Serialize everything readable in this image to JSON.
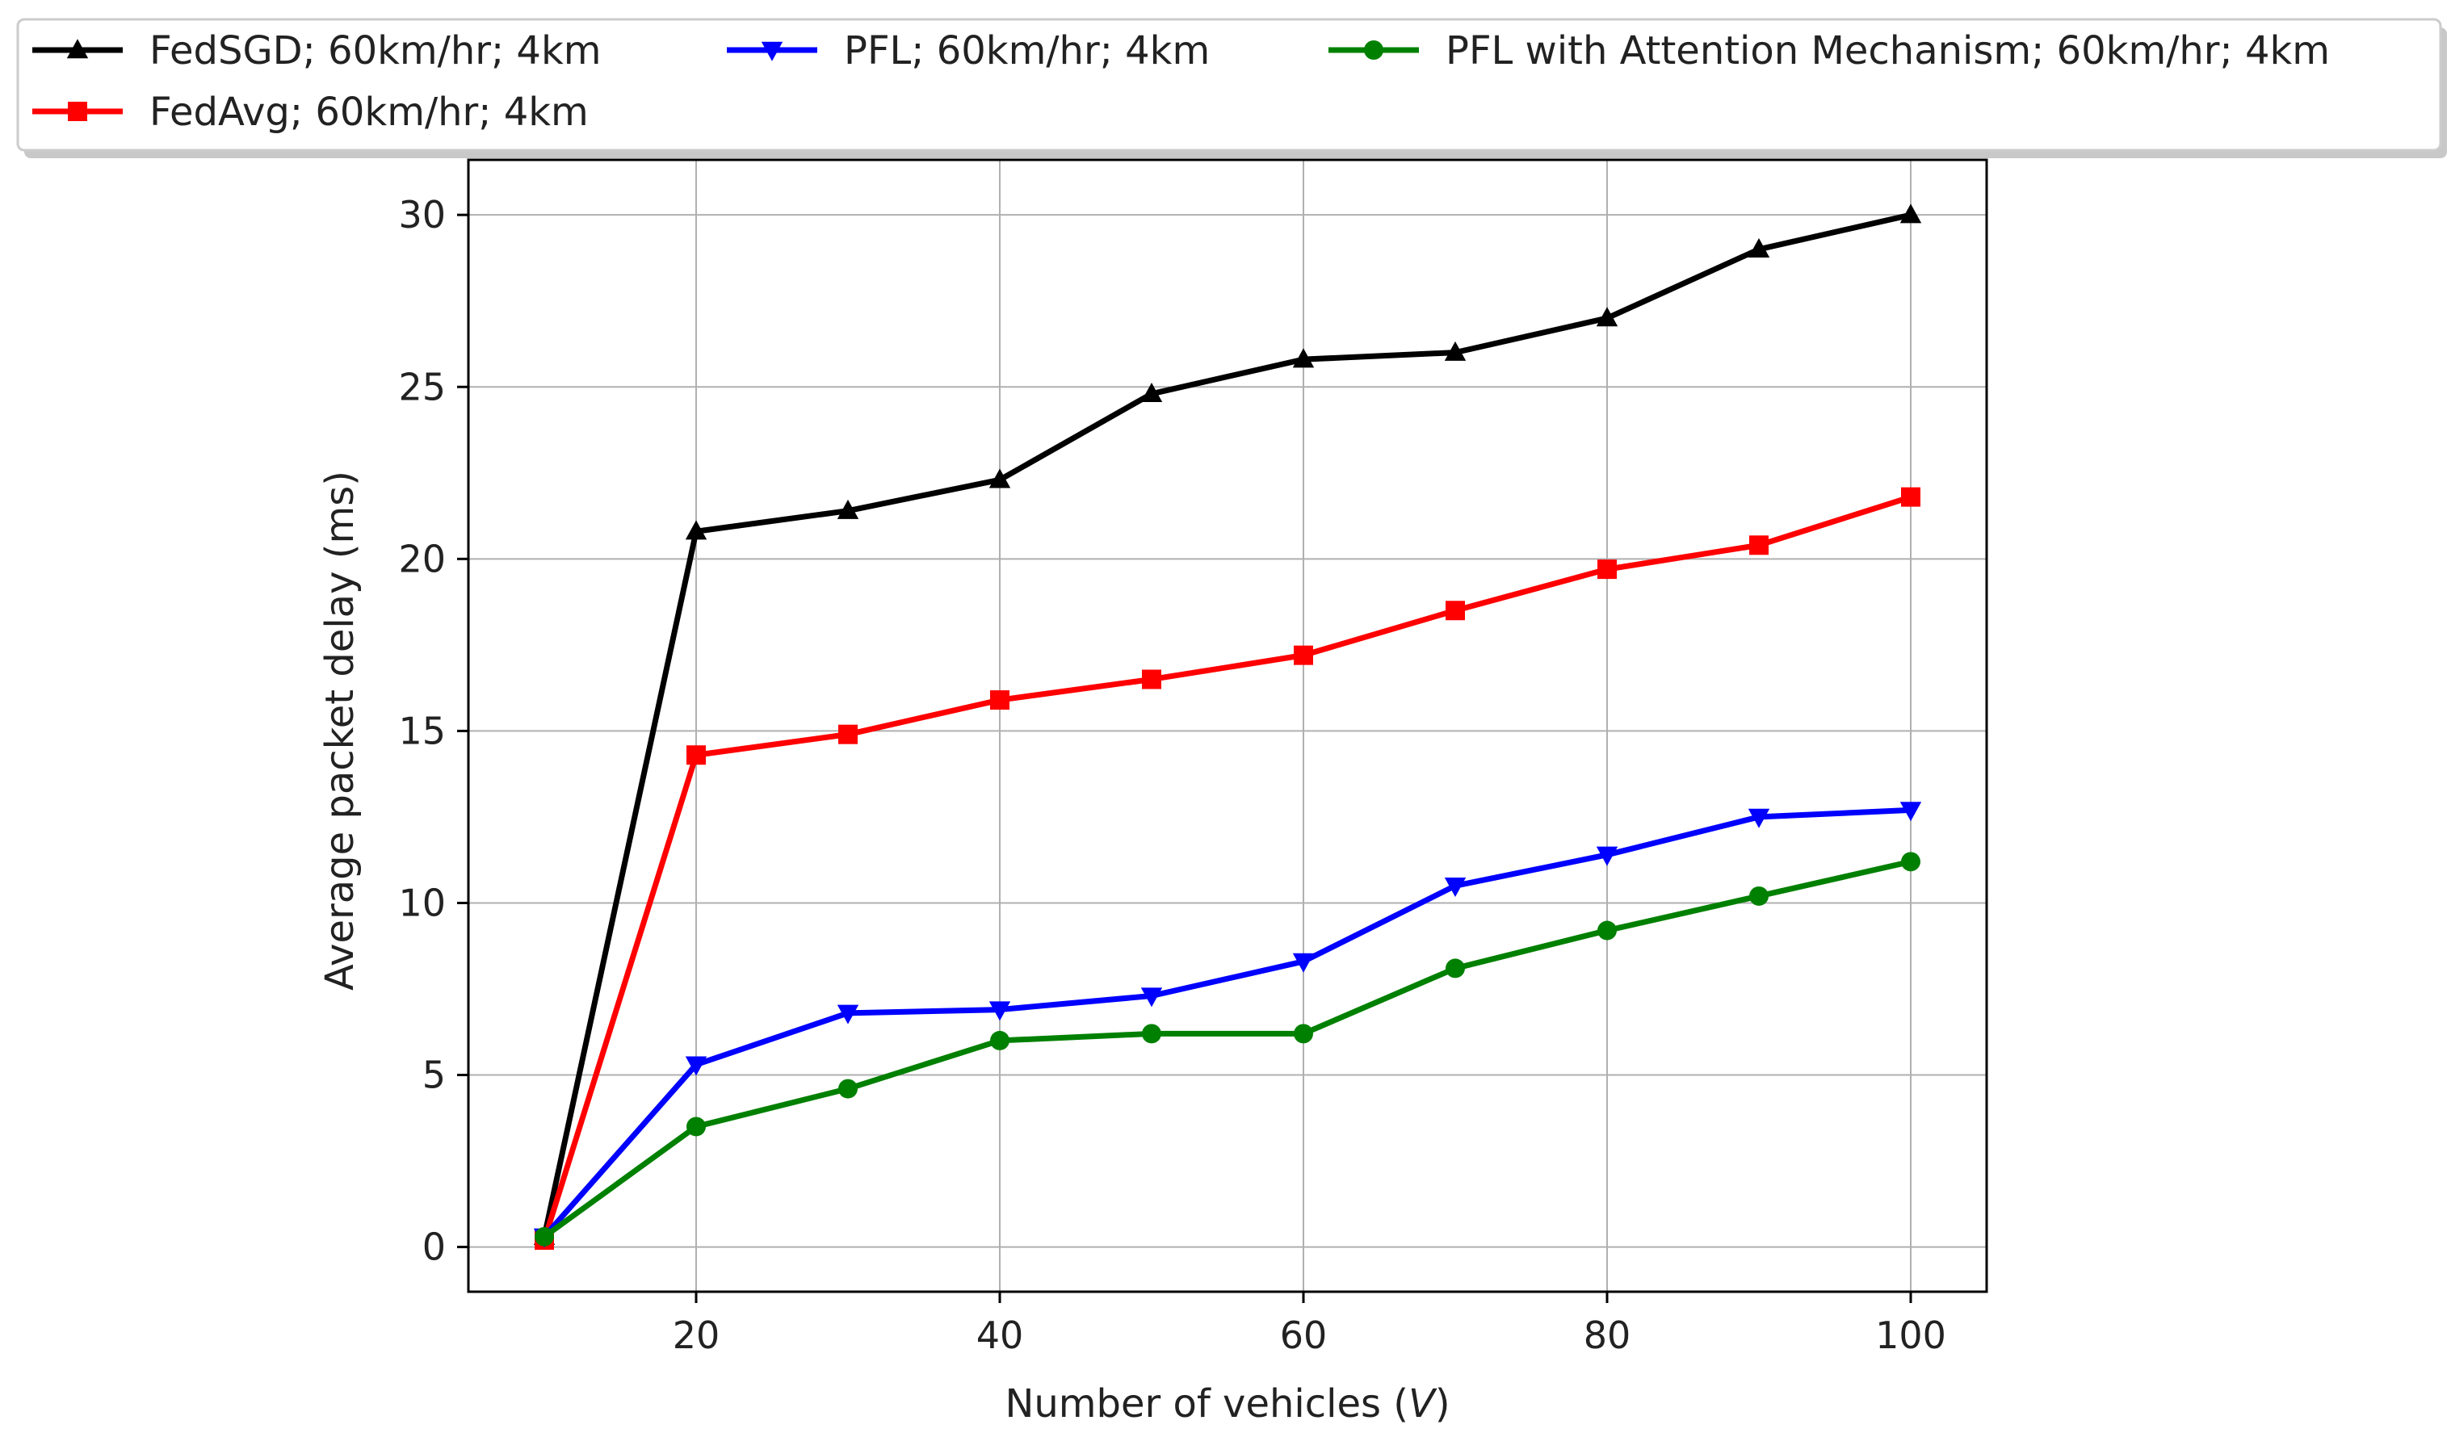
{
  "chart_data": {
    "type": "line",
    "title": "",
    "xlabel": "Number of vehicles (",
    "xlabel_var": "V",
    "xlabel_end": ")",
    "ylabel": "Average packet delay (ms)",
    "xlim": [
      5,
      105
    ],
    "ylim": [
      -1.3,
      31.6
    ],
    "xticks": [
      20,
      40,
      60,
      80,
      100
    ],
    "yticks": [
      0,
      5,
      10,
      15,
      20,
      25,
      30
    ],
    "grid": true,
    "legend_position": "top, above plot, 3 columns",
    "x": [
      10,
      20,
      30,
      40,
      50,
      60,
      70,
      80,
      90,
      100
    ],
    "series": [
      {
        "name": "FedSGD; 60km/hr; 4km",
        "color": "#000000",
        "marker": "triangle-up",
        "values": [
          0.3,
          20.8,
          21.4,
          22.3,
          24.8,
          25.8,
          26.0,
          27.0,
          29.0,
          30.0
        ]
      },
      {
        "name": "FedAvg; 60km/hr; 4km",
        "color": "#ff0000",
        "marker": "square",
        "values": [
          0.2,
          14.3,
          14.9,
          15.9,
          16.5,
          17.2,
          18.5,
          19.7,
          20.4,
          21.8
        ]
      },
      {
        "name": "PFL; 60km/hr; 4km",
        "color": "#0000ff",
        "marker": "triangle-down",
        "values": [
          0.3,
          5.3,
          6.8,
          6.9,
          7.3,
          8.3,
          10.5,
          11.4,
          12.5,
          12.7
        ]
      },
      {
        "name": "PFL with Attention Mechanism; 60km/hr; 4km",
        "color": "#008000",
        "marker": "circle",
        "values": [
          0.3,
          3.5,
          4.6,
          6.0,
          6.2,
          6.2,
          8.1,
          9.2,
          10.2,
          11.2
        ]
      }
    ]
  }
}
